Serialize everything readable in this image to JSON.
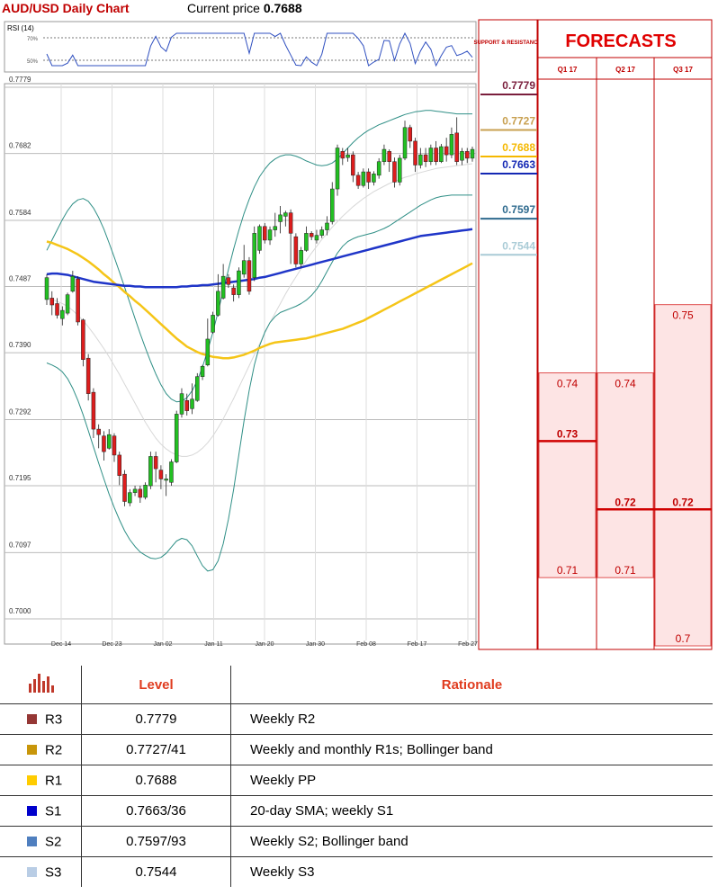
{
  "header": {
    "title": "AUD/USD Daily Chart",
    "price_label": "Current price",
    "price_value": "0.7688"
  },
  "rsi": {
    "label": "RSI (14)",
    "levels": [
      "70%",
      "50%"
    ]
  },
  "chart_data": {
    "type": "candlestick",
    "y_ticks": [
      "0.7779",
      "0.7682",
      "0.7584",
      "0.7487",
      "0.7390",
      "0.7292",
      "0.7195",
      "0.7097",
      "0.7000"
    ],
    "ylim": [
      0.7,
      0.7779
    ],
    "x_ticks": [
      "Dec 14",
      "Dec 23",
      "Jan 02",
      "Jan 11",
      "Jan 20",
      "Jan 30",
      "Feb 08",
      "Feb 17",
      "Feb 27"
    ],
    "candles": [
      [
        0.7468,
        0.75,
        0.746,
        0.7505
      ],
      [
        0.747,
        0.746,
        0.7445,
        0.748
      ],
      [
        0.7462,
        0.7445,
        0.744,
        0.747
      ],
      [
        0.744,
        0.7452,
        0.743,
        0.7458
      ],
      [
        0.7448,
        0.7475,
        0.7445,
        0.7478
      ],
      [
        0.748,
        0.7502,
        0.7478,
        0.751
      ],
      [
        0.7498,
        0.7435,
        0.743,
        0.7502
      ],
      [
        0.7438,
        0.738,
        0.737,
        0.744
      ],
      [
        0.7382,
        0.733,
        0.732,
        0.7388
      ],
      [
        0.7332,
        0.7278,
        0.7265,
        0.7338
      ],
      [
        0.7278,
        0.727,
        0.725,
        0.7285
      ],
      [
        0.7268,
        0.7245,
        0.7232,
        0.7275
      ],
      [
        0.725,
        0.727,
        0.7248,
        0.7278
      ],
      [
        0.7268,
        0.724,
        0.723,
        0.7272
      ],
      [
        0.724,
        0.721,
        0.7196,
        0.7245
      ],
      [
        0.7212,
        0.7172,
        0.7165,
        0.7218
      ],
      [
        0.717,
        0.7185,
        0.7165,
        0.719
      ],
      [
        0.7185,
        0.719,
        0.718,
        0.7195
      ],
      [
        0.719,
        0.7178,
        0.717,
        0.7195
      ],
      [
        0.7178,
        0.7196,
        0.7175,
        0.72
      ],
      [
        0.7195,
        0.7238,
        0.719,
        0.7245
      ],
      [
        0.7238,
        0.722,
        0.72,
        0.7245
      ],
      [
        0.7218,
        0.7205,
        0.719,
        0.7225
      ],
      [
        0.7205,
        0.7205,
        0.718,
        0.7212
      ],
      [
        0.72,
        0.723,
        0.7195,
        0.7234
      ],
      [
        0.723,
        0.73,
        0.7228,
        0.7305
      ],
      [
        0.73,
        0.733,
        0.7295,
        0.7338
      ],
      [
        0.732,
        0.7305,
        0.7298,
        0.733
      ],
      [
        0.7308,
        0.7322,
        0.73,
        0.7345
      ],
      [
        0.732,
        0.7355,
        0.7318,
        0.736
      ],
      [
        0.7355,
        0.737,
        0.735,
        0.7372
      ],
      [
        0.7372,
        0.741,
        0.737,
        0.744
      ],
      [
        0.742,
        0.7445,
        0.7418,
        0.745
      ],
      [
        0.7445,
        0.748,
        0.7443,
        0.7505
      ],
      [
        0.747,
        0.7502,
        0.7468,
        0.752
      ],
      [
        0.75,
        0.749,
        0.7485,
        0.7505
      ],
      [
        0.7485,
        0.7475,
        0.7465,
        0.749
      ],
      [
        0.7475,
        0.751,
        0.747,
        0.7515
      ],
      [
        0.7505,
        0.7525,
        0.75,
        0.7548
      ],
      [
        0.7525,
        0.748,
        0.7475,
        0.753
      ],
      [
        0.75,
        0.7565,
        0.7495,
        0.7575
      ],
      [
        0.754,
        0.7575,
        0.7535,
        0.7578
      ],
      [
        0.7575,
        0.7555,
        0.755,
        0.758
      ],
      [
        0.7555,
        0.757,
        0.7548,
        0.7575
      ],
      [
        0.757,
        0.7575,
        0.756,
        0.7595
      ],
      [
        0.7582,
        0.7592,
        0.7565,
        0.7605
      ],
      [
        0.759,
        0.7595,
        0.7575,
        0.7598
      ],
      [
        0.7595,
        0.7565,
        0.752,
        0.76
      ],
      [
        0.756,
        0.752,
        0.7515,
        0.7565
      ],
      [
        0.752,
        0.754,
        0.7515,
        0.7545
      ],
      [
        0.754,
        0.7565,
        0.7538,
        0.7575
      ],
      [
        0.7565,
        0.756,
        0.7555,
        0.7568
      ],
      [
        0.7555,
        0.7562,
        0.755,
        0.757
      ],
      [
        0.7562,
        0.757,
        0.7558,
        0.7575
      ],
      [
        0.757,
        0.758,
        0.7562,
        0.759
      ],
      [
        0.7582,
        0.763,
        0.7578,
        0.764
      ],
      [
        0.763,
        0.769,
        0.762,
        0.7695
      ],
      [
        0.7685,
        0.7675,
        0.7665,
        0.769
      ],
      [
        0.7676,
        0.768,
        0.767,
        0.769
      ],
      [
        0.768,
        0.765,
        0.764,
        0.7685
      ],
      [
        0.765,
        0.7635,
        0.763,
        0.7655
      ],
      [
        0.7635,
        0.7655,
        0.7632,
        0.766
      ],
      [
        0.7655,
        0.764,
        0.763,
        0.766
      ],
      [
        0.764,
        0.7652,
        0.7635,
        0.7656
      ],
      [
        0.765,
        0.767,
        0.7645,
        0.7675
      ],
      [
        0.767,
        0.7688,
        0.7665,
        0.7695
      ],
      [
        0.7685,
        0.767,
        0.7655,
        0.7688
      ],
      [
        0.767,
        0.764,
        0.7632,
        0.7676
      ],
      [
        0.764,
        0.7675,
        0.7635,
        0.768
      ],
      [
        0.7675,
        0.772,
        0.7672,
        0.773
      ],
      [
        0.772,
        0.77,
        0.769,
        0.7724
      ],
      [
        0.77,
        0.7665,
        0.7655,
        0.7705
      ],
      [
        0.7665,
        0.768,
        0.766,
        0.769
      ],
      [
        0.768,
        0.767,
        0.7662,
        0.769
      ],
      [
        0.767,
        0.769,
        0.7665,
        0.7695
      ],
      [
        0.769,
        0.767,
        0.7665,
        0.77
      ],
      [
        0.767,
        0.7692,
        0.7668,
        0.7696
      ],
      [
        0.7692,
        0.768,
        0.767,
        0.7705
      ],
      [
        0.768,
        0.771,
        0.7675,
        0.772
      ],
      [
        0.7712,
        0.767,
        0.7665,
        0.7735
      ],
      [
        0.7672,
        0.7685,
        0.7665,
        0.769
      ],
      [
        0.7685,
        0.7675,
        0.7668,
        0.769
      ],
      [
        0.7675,
        0.7688,
        0.767,
        0.7692
      ]
    ],
    "sma200": [
      0.7553,
      0.7551,
      0.7548,
      0.7545,
      0.7542,
      0.7538,
      0.7534,
      0.7529,
      0.7524,
      0.7518,
      0.7512,
      0.7505,
      0.7499,
      0.7492,
      0.7486,
      0.7479,
      0.7473,
      0.7466,
      0.746,
      0.7453,
      0.7446,
      0.7439,
      0.7432,
      0.7425,
      0.7418,
      0.7411,
      0.7405,
      0.7399,
      0.7395,
      0.7391,
      0.7388,
      0.7386,
      0.7384,
      0.7383,
      0.7382,
      0.7382,
      0.7383,
      0.7385,
      0.7387,
      0.739,
      0.7393,
      0.7397,
      0.74,
      0.7403,
      0.7405,
      0.7406,
      0.7407,
      0.7408,
      0.7409,
      0.741,
      0.7411,
      0.7413,
      0.7415,
      0.7417,
      0.7419,
      0.7421,
      0.7423,
      0.7425,
      0.7428,
      0.7431,
      0.7434,
      0.7437,
      0.7441,
      0.7445,
      0.7449,
      0.7453,
      0.7457,
      0.7461,
      0.7465,
      0.7469,
      0.7473,
      0.7477,
      0.7481,
      0.7485,
      0.7489,
      0.7493,
      0.7497,
      0.7501,
      0.7505,
      0.7509,
      0.7513,
      0.7517,
      0.7521
    ],
    "sma100": [
      0.7505,
      0.7506,
      0.7506,
      0.7505,
      0.7504,
      0.7502,
      0.75,
      0.7498,
      0.7496,
      0.7494,
      0.7493,
      0.7492,
      0.7491,
      0.749,
      0.7489,
      0.7488,
      0.7488,
      0.7487,
      0.7487,
      0.7486,
      0.7486,
      0.7486,
      0.7486,
      0.7486,
      0.7486,
      0.7486,
      0.7487,
      0.7487,
      0.7488,
      0.7488,
      0.7489,
      0.7489,
      0.749,
      0.7491,
      0.7492,
      0.7493,
      0.7494,
      0.7495,
      0.7496,
      0.7497,
      0.7498,
      0.75,
      0.7501,
      0.7503,
      0.7505,
      0.7507,
      0.7509,
      0.7511,
      0.7513,
      0.7515,
      0.7517,
      0.7519,
      0.7521,
      0.7523,
      0.7525,
      0.7527,
      0.7529,
      0.7531,
      0.7533,
      0.7535,
      0.7537,
      0.7539,
      0.7541,
      0.7543,
      0.7545,
      0.7547,
      0.7549,
      0.7551,
      0.7553,
      0.7555,
      0.7557,
      0.7559,
      0.7561,
      0.7562,
      0.7563,
      0.7564,
      0.7565,
      0.7566,
      0.7567,
      0.7568,
      0.7569,
      0.757,
      0.7571
    ],
    "sma20": [
      0.747,
      0.7468,
      0.7465,
      0.7462,
      0.7458,
      0.7452,
      0.7445,
      0.7437,
      0.7428,
      0.7418,
      0.7407,
      0.7396,
      0.7384,
      0.7371,
      0.7358,
      0.7344,
      0.733,
      0.7316,
      0.7302,
      0.7288,
      0.7276,
      0.7265,
      0.7256,
      0.7249,
      0.7244,
      0.724,
      0.7238,
      0.7238,
      0.724,
      0.7244,
      0.725,
      0.7258,
      0.7268,
      0.728,
      0.7293,
      0.7308,
      0.7323,
      0.7339,
      0.7355,
      0.7371,
      0.7387,
      0.7403,
      0.7419,
      0.7434,
      0.7448,
      0.7462,
      0.7476,
      0.7489,
      0.7501,
      0.7513,
      0.7525,
      0.7536,
      0.7546,
      0.7556,
      0.7565,
      0.7574,
      0.7582,
      0.759,
      0.7597,
      0.7604,
      0.761,
      0.7616,
      0.7621,
      0.7626,
      0.763,
      0.7634,
      0.7638,
      0.7641,
      0.7644,
      0.7647,
      0.7649,
      0.7652,
      0.7654,
      0.7656,
      0.7658,
      0.766,
      0.7661,
      0.7662,
      0.7663,
      0.7664,
      0.7665,
      0.7666,
      0.7667
    ],
    "bb_upper": [
      0.754,
      0.7555,
      0.757,
      0.7585,
      0.7598,
      0.7608,
      0.7614,
      0.7616,
      0.7612,
      0.7602,
      0.7588,
      0.7571,
      0.7551,
      0.753,
      0.7508,
      0.7486,
      0.7463,
      0.744,
      0.7418,
      0.7397,
      0.7377,
      0.7359,
      0.7343,
      0.733,
      0.7322,
      0.7318,
      0.7319,
      0.7324,
      0.7334,
      0.7349,
      0.7369,
      0.7393,
      0.742,
      0.745,
      0.7481,
      0.7512,
      0.7542,
      0.7569,
      0.7594,
      0.7615,
      0.7633,
      0.7648,
      0.7659,
      0.7668,
      0.7674,
      0.7678,
      0.768,
      0.768,
      0.7678,
      0.7675,
      0.7671,
      0.7668,
      0.7665,
      0.7664,
      0.7665,
      0.7668,
      0.7674,
      0.7682,
      0.769,
      0.7698,
      0.7705,
      0.7711,
      0.7716,
      0.772,
      0.7724,
      0.7727,
      0.773,
      0.7733,
      0.7736,
      0.7739,
      0.7741,
      0.7743,
      0.7744,
      0.7745,
      0.7745,
      0.7744,
      0.7743,
      0.7742,
      0.7741,
      0.774,
      0.774,
      0.774,
      0.774
    ],
    "bb_lower": [
      0.7375,
      0.7372,
      0.7368,
      0.7362,
      0.7352,
      0.7338,
      0.732,
      0.7299,
      0.7276,
      0.7252,
      0.7228,
      0.7205,
      0.7183,
      0.7163,
      0.7145,
      0.7129,
      0.7116,
      0.7106,
      0.7098,
      0.7093,
      0.7089,
      0.7088,
      0.709,
      0.7096,
      0.7105,
      0.7114,
      0.7118,
      0.7116,
      0.7107,
      0.7092,
      0.7078,
      0.707,
      0.7072,
      0.7085,
      0.711,
      0.7146,
      0.719,
      0.724,
      0.729,
      0.7335,
      0.7372,
      0.74,
      0.742,
      0.7434,
      0.7443,
      0.7449,
      0.7452,
      0.7455,
      0.7458,
      0.7462,
      0.7467,
      0.7474,
      0.7483,
      0.7495,
      0.7509,
      0.7523,
      0.7536,
      0.7546,
      0.7553,
      0.7557,
      0.756,
      0.7562,
      0.7564,
      0.7566,
      0.7569,
      0.7572,
      0.7576,
      0.7581,
      0.7586,
      0.7591,
      0.7596,
      0.7601,
      0.7606,
      0.761,
      0.7614,
      0.7617,
      0.7619,
      0.762,
      0.7621,
      0.7621,
      0.7621,
      0.7621,
      0.7621
    ]
  },
  "support_resistance": {
    "title": "SUPPORT & RESISTANCE",
    "levels": [
      {
        "label": "0.7779",
        "value": 0.7779,
        "color": "#7a1e3c"
      },
      {
        "label": "0.7727",
        "value": 0.7727,
        "color": "#c8a050"
      },
      {
        "label": "0.7688",
        "value": 0.7688,
        "color": "#f5b800"
      },
      {
        "label": "0.7663",
        "value": 0.7663,
        "color": "#1428b4"
      },
      {
        "label": "0.7597",
        "value": 0.7597,
        "color": "#2e6a8e"
      },
      {
        "label": "0.7544",
        "value": 0.7544,
        "color": "#a9cbd6"
      }
    ]
  },
  "forecasts": {
    "title": "FORECASTS",
    "quarters": [
      {
        "label": "Q1 17",
        "high": "0.74",
        "mid": "0.73",
        "low": "0.71",
        "high_v": 0.74,
        "mid_v": 0.73,
        "low_v": 0.71
      },
      {
        "label": "Q2 17",
        "high": "0.74",
        "mid": "0.72",
        "low": "0.71",
        "high_v": 0.74,
        "mid_v": 0.72,
        "low_v": 0.71
      },
      {
        "label": "Q3 17",
        "high": "0.75",
        "mid": "0.72",
        "low": "0.7",
        "high_v": 0.75,
        "mid_v": 0.72,
        "low_v": 0.7
      }
    ]
  },
  "table": {
    "headers": [
      "Level",
      "Rationale"
    ],
    "rows": [
      {
        "name": "R3",
        "color": "#953735",
        "level": "0.7779",
        "rationale": "Weekly R2"
      },
      {
        "name": "R2",
        "color": "#c8960a",
        "level": "0.7727/41",
        "rationale": "Weekly and monthly R1s; Bollinger band"
      },
      {
        "name": "R1",
        "color": "#ffcc00",
        "level": "0.7688",
        "rationale": "Weekly PP"
      },
      {
        "name": "S1",
        "color": "#0000cc",
        "level": "0.7663/36",
        "rationale": "20-day SMA; weekly S1"
      },
      {
        "name": "S2",
        "color": "#4f7fbf",
        "level": "0.7597/93",
        "rationale": "Weekly S2; Bollinger band"
      },
      {
        "name": "S3",
        "color": "#b9cde5",
        "level": "0.7544",
        "rationale": "Weekly S3"
      }
    ]
  }
}
